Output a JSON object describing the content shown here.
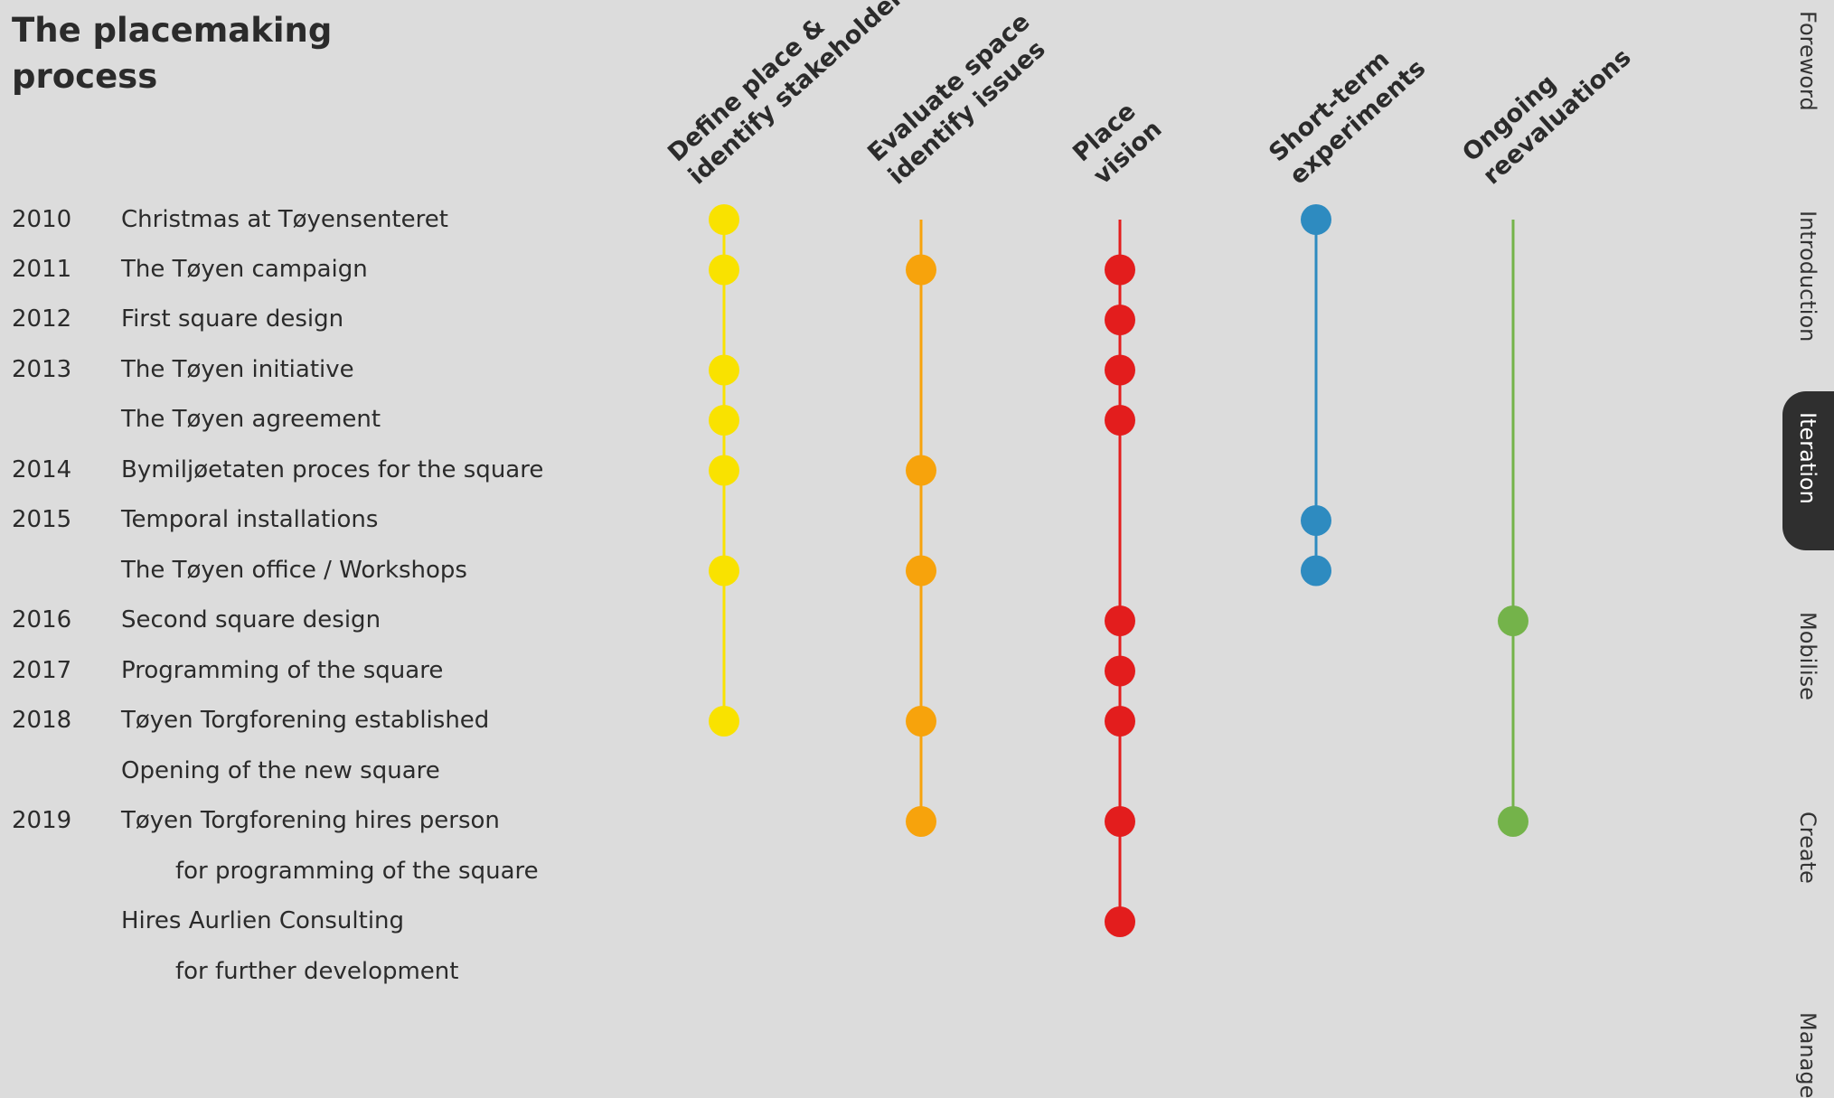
{
  "title_lines": [
    "The placemaking",
    "process"
  ],
  "columns": [
    {
      "lines": [
        "Define place &",
        "identify stakeholders"
      ],
      "color": "#f9e200"
    },
    {
      "lines": [
        "Evaluate space",
        "identify issues"
      ],
      "color": "#f7a30c"
    },
    {
      "lines": [
        "Place",
        "vision"
      ],
      "color": "#e31d1d"
    },
    {
      "lines": [
        "Short-term",
        "experiments"
      ],
      "color": "#2e8bc0"
    },
    {
      "lines": [
        "Ongoing",
        "reevaluations"
      ],
      "color": "#74b34a"
    }
  ],
  "rows": [
    {
      "year": "2010",
      "event": "Christmas at Tøyensenteret",
      "indent": false,
      "dots": [
        0,
        3
      ]
    },
    {
      "year": "2011",
      "event": "The Tøyen campaign",
      "indent": false,
      "dots": [
        0,
        1,
        2
      ]
    },
    {
      "year": "2012",
      "event": "First square design",
      "indent": false,
      "dots": [
        2
      ]
    },
    {
      "year": "2013",
      "event": "The Tøyen initiative",
      "indent": false,
      "dots": [
        0,
        2
      ]
    },
    {
      "year": "",
      "event": "The Tøyen agreement",
      "indent": false,
      "dots": [
        0,
        2
      ]
    },
    {
      "year": "2014",
      "event": "Bymiljøetaten proces for the square",
      "indent": false,
      "dots": [
        0,
        1
      ]
    },
    {
      "year": "2015",
      "event": "Temporal installations",
      "indent": false,
      "dots": [
        3
      ]
    },
    {
      "year": "",
      "event": "The Tøyen office / Workshops",
      "indent": false,
      "dots": [
        0,
        1,
        3
      ]
    },
    {
      "year": "2016",
      "event": "Second square design",
      "indent": false,
      "dots": [
        2,
        4
      ]
    },
    {
      "year": "2017",
      "event": "Programming of the square",
      "indent": false,
      "dots": [
        2
      ]
    },
    {
      "year": "2018",
      "event": "Tøyen Torgforening established",
      "indent": false,
      "dots": [
        0,
        1,
        2
      ]
    },
    {
      "year": "",
      "event": "Opening of the new square",
      "indent": false,
      "dots": []
    },
    {
      "year": "2019",
      "event": "Tøyen Torgforening hires person",
      "indent": false,
      "dots": [
        1,
        2,
        4
      ]
    },
    {
      "year": "",
      "event": "for programming of the square",
      "indent": true,
      "dots": []
    },
    {
      "year": "",
      "event": "Hires Aurlien Consulting",
      "indent": false,
      "dots": [
        2
      ]
    },
    {
      "year": "",
      "event": "for further development",
      "indent": true,
      "dots": []
    }
  ],
  "column_spans": [
    {
      "from_row": 0,
      "to_row": 10
    },
    {
      "from_row": 0,
      "to_row": 12
    },
    {
      "from_row": 0,
      "to_row": 14
    },
    {
      "from_row": 0,
      "to_row": 7
    },
    {
      "from_row": 0,
      "to_row": 12
    }
  ],
  "nav": [
    {
      "label": "Foreword",
      "active": false
    },
    {
      "label": "Introduction",
      "active": false
    },
    {
      "label": "Iteration",
      "active": true
    },
    {
      "label": "Mobilise",
      "active": false
    },
    {
      "label": "Create",
      "active": false
    },
    {
      "label": "Manage",
      "active": false
    }
  ]
}
